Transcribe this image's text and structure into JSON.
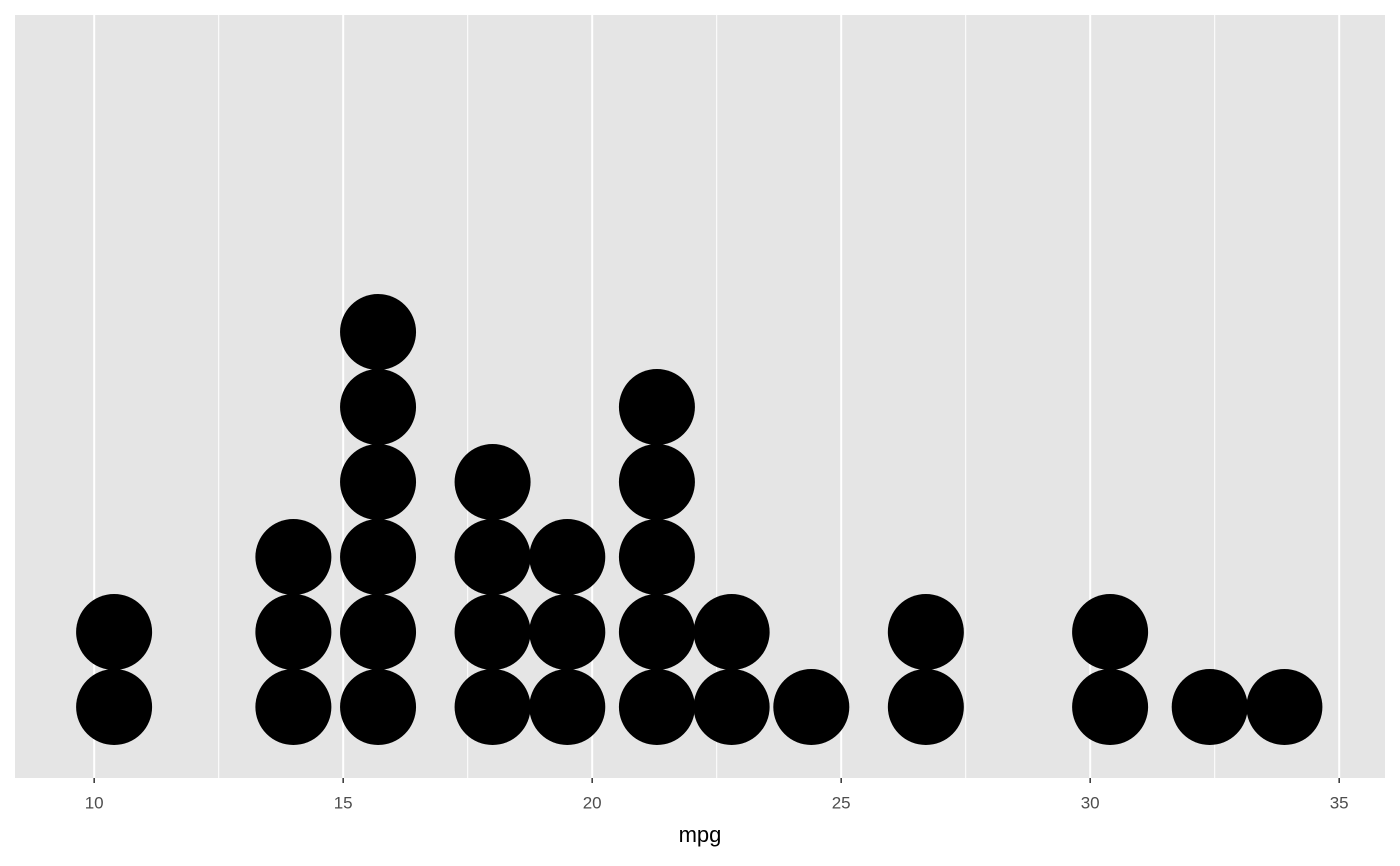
{
  "chart_data": {
    "type": "dotplot",
    "x_label": "mpg",
    "x": [
      10.4,
      14.0,
      15.7,
      18.0,
      19.5,
      21.3,
      22.8,
      24.4,
      26.7,
      30.4,
      32.4,
      33.9
    ],
    "values": [
      2,
      3,
      6,
      4,
      3,
      5,
      2,
      1,
      2,
      2,
      1,
      1
    ],
    "color": "#000000",
    "xlim": [
      8.41,
      35.92
    ],
    "xticks": [
      10,
      15,
      20,
      25,
      30,
      35
    ],
    "grid": true
  }
}
